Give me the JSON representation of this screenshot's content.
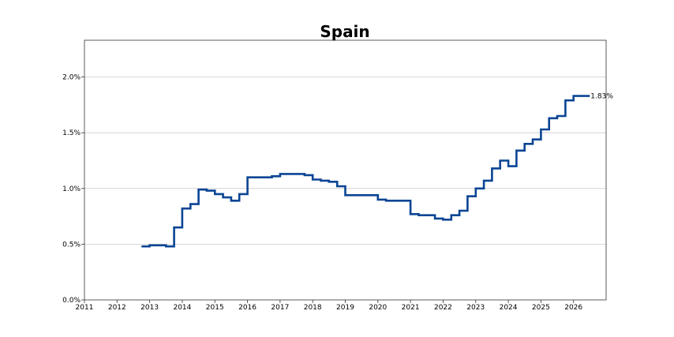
{
  "chart_data": {
    "type": "line",
    "title": "Spain",
    "xlabel": "",
    "ylabel": "",
    "step": true,
    "grid": "horizontal",
    "xlim": [
      2011,
      2027
    ],
    "ylim": [
      0,
      0.0233
    ],
    "x_ticks": [
      2011,
      2012,
      2013,
      2014,
      2015,
      2016,
      2017,
      2018,
      2019,
      2020,
      2021,
      2022,
      2023,
      2024,
      2025,
      2026
    ],
    "y_ticks": [
      0,
      0.005,
      0.01,
      0.015,
      0.02
    ],
    "y_tick_labels": [
      "0.0%",
      "0.5%",
      "1.0%",
      "1.5%",
      "2.0%"
    ],
    "series": [
      {
        "color": "#0a4594",
        "x": [
          2012.75,
          2013.0,
          2013.25,
          2013.5,
          2013.75,
          2014.0,
          2014.25,
          2014.5,
          2014.75,
          2015.0,
          2015.25,
          2015.5,
          2015.75,
          2016.0,
          2016.25,
          2016.5,
          2016.75,
          2017.0,
          2017.25,
          2017.5,
          2017.75,
          2018.0,
          2018.25,
          2018.5,
          2018.75,
          2019.0,
          2019.25,
          2019.5,
          2019.75,
          2020.0,
          2020.25,
          2020.5,
          2020.75,
          2021.0,
          2021.25,
          2021.5,
          2021.75,
          2022.0,
          2022.25,
          2022.5,
          2022.75,
          2023.0,
          2023.25,
          2023.5,
          2023.75,
          2024.0,
          2024.25,
          2024.5,
          2024.75,
          2025.0,
          2025.25,
          2025.5,
          2025.75,
          2026.0,
          2026.25
        ],
        "values": [
          0.0048,
          0.0049,
          0.0049,
          0.0048,
          0.0065,
          0.0082,
          0.0086,
          0.0099,
          0.0098,
          0.0095,
          0.0092,
          0.0089,
          0.0095,
          0.011,
          0.011,
          0.011,
          0.0111,
          0.0113,
          0.0113,
          0.0113,
          0.0112,
          0.0108,
          0.0107,
          0.0106,
          0.0102,
          0.0094,
          0.0094,
          0.0094,
          0.0094,
          0.009,
          0.0089,
          0.0089,
          0.0089,
          0.0077,
          0.0076,
          0.0076,
          0.0073,
          0.0072,
          0.0076,
          0.008,
          0.0093,
          0.01,
          0.0107,
          0.0118,
          0.0125,
          0.012,
          0.0134,
          0.014,
          0.0144,
          0.0153,
          0.0163,
          0.0165,
          0.0179,
          0.0183,
          0.0183
        ]
      }
    ],
    "end_label": "1.83%"
  }
}
